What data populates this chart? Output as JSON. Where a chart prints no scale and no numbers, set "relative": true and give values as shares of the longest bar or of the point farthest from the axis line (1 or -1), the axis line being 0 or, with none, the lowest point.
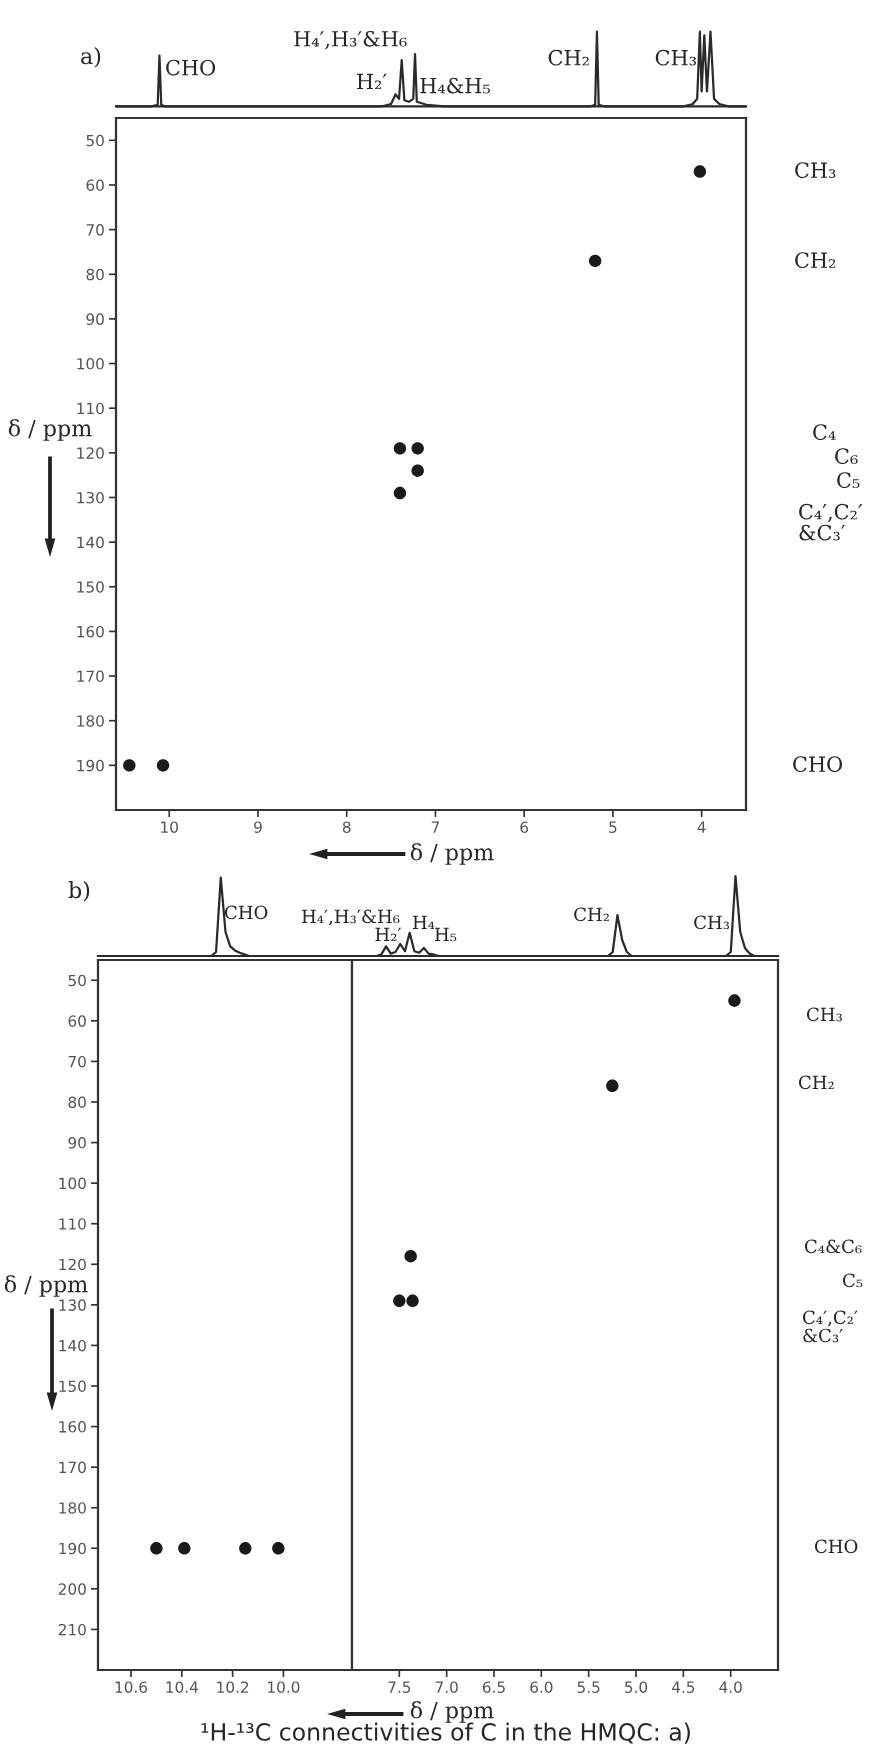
{
  "chart_data": [
    {
      "type": "line",
      "title": "a)",
      "relative": true,
      "xlim": [
        10.6,
        3.5
      ],
      "tick_labels": false,
      "x": [
        10.6,
        10.2,
        10.13,
        10.11,
        10.09,
        10.05,
        7.6,
        7.5,
        7.45,
        7.41,
        7.38,
        7.35,
        7.3,
        7.25,
        7.23,
        7.21,
        7.1,
        6.9,
        5.25,
        5.2,
        5.18,
        5.16,
        5.1,
        4.2,
        4.1,
        4.05,
        4.02,
        4.0,
        3.97,
        3.94,
        3.9,
        3.86,
        3.8,
        3.7,
        3.5
      ],
      "series": [
        {
          "color": "#2a2a2a",
          "values": [
            0,
            0,
            0.02,
            0.68,
            0.02,
            0,
            0,
            0.03,
            0.16,
            0.1,
            0.62,
            0.08,
            0.06,
            0.1,
            0.7,
            0.06,
            0.02,
            0,
            0,
            0.02,
            1.0,
            0.02,
            0,
            0,
            0.03,
            0.1,
            1.0,
            0.2,
            0.95,
            0.2,
            1.0,
            0.1,
            0.03,
            0,
            0
          ]
        }
      ],
      "annotations": [
        {
          "text": "CHO",
          "x": 10.11,
          "y": 0.68
        },
        {
          "text": "H₄′,H₃′&H₆",
          "x": 7.38,
          "y": 0.62
        },
        {
          "text": "H₂′",
          "x": 7.45,
          "y": 0.16
        },
        {
          "text": "H₄&H₅",
          "x": 7.23,
          "y": 0.7
        },
        {
          "text": "CH₂",
          "x": 5.18,
          "y": 1.0
        },
        {
          "text": "CH₃",
          "x": 4.02,
          "y": 1.0
        }
      ]
    },
    {
      "type": "scatter",
      "xlabel": "δ / ppm",
      "ylabel": "δ / ppm",
      "marker": "circle",
      "xlim": [
        10.6,
        3.5
      ],
      "ylim": [
        200,
        45
      ],
      "xticks": [
        10,
        9,
        8,
        7,
        6,
        5,
        4
      ],
      "yticks": [
        50,
        60,
        70,
        80,
        90,
        100,
        110,
        120,
        130,
        140,
        150,
        160,
        170,
        180,
        190
      ],
      "x": [
        4.02,
        5.2,
        7.4,
        7.2,
        7.2,
        7.4,
        10.45,
        10.07
      ],
      "series": [
        {
          "color": "#1a1a1a",
          "values": [
            57,
            77,
            119,
            119,
            124,
            129,
            190,
            190
          ]
        }
      ],
      "annotations": [
        "CH₃",
        "CH₂",
        "C₄",
        "C₆",
        "C₅",
        "C₄′,C₂′\n&C₃′",
        "CHO"
      ]
    },
    {
      "type": "line",
      "title": "b)",
      "relative": true,
      "tick_labels": false,
      "categories": [
        null,
        null,
        null,
        null,
        null,
        null,
        null,
        null,
        null,
        null,
        null,
        null,
        null,
        null,
        null,
        null,
        null,
        null,
        null,
        null,
        null,
        null,
        null,
        null,
        null,
        null,
        null,
        null,
        null,
        null,
        null,
        null,
        null,
        null,
        null,
        null,
        null,
        null,
        null,
        null,
        null,
        null,
        null,
        null,
        null,
        null,
        null,
        null,
        null,
        null,
        null,
        null,
        null,
        null,
        null,
        null,
        null,
        null,
        null,
        null,
        null,
        null,
        null,
        null,
        null,
        null,
        null,
        null,
        null,
        null,
        null,
        null,
        null,
        null,
        null,
        null,
        null,
        null,
        null,
        null,
        null,
        null,
        null,
        null,
        null,
        null,
        null,
        null,
        null,
        null,
        null,
        null,
        null,
        null,
        null,
        null,
        null,
        null,
        null,
        null,
        null,
        null,
        null,
        null,
        null,
        null,
        null,
        null,
        null,
        null,
        null,
        null,
        null,
        null,
        null,
        null,
        null,
        null,
        null,
        null,
        null,
        null,
        null,
        null,
        null,
        null,
        null,
        null,
        null,
        null,
        null,
        null,
        null,
        null,
        null,
        null,
        null,
        null,
        null,
        null,
        null,
        null,
        null,
        null,
        null
      ],
      "series": [
        {
          "color": "#2a2a2a",
          "values": [
            0,
            0,
            0,
            0,
            0,
            0,
            0,
            0,
            0,
            0,
            0,
            0,
            0,
            0,
            0,
            0,
            0,
            0,
            0,
            0,
            0,
            0,
            0,
            0,
            0,
            0.05,
            0.98,
            0.3,
            0.12,
            0.07,
            0.04,
            0.02,
            0,
            0,
            0,
            0,
            0,
            0,
            0,
            0,
            0,
            0,
            0,
            0,
            0,
            0,
            0,
            0,
            0,
            0,
            0,
            0,
            0,
            0,
            0,
            0,
            0,
            0,
            0,
            0,
            0.02,
            0.12,
            0.03,
            0.05,
            0.15,
            0.06,
            0.29,
            0.06,
            0.04,
            0.1,
            0.03,
            0.02,
            0,
            0,
            0,
            0,
            0,
            0,
            0,
            0,
            0,
            0,
            0,
            0,
            0,
            0,
            0,
            0,
            0,
            0,
            0,
            0,
            0,
            0,
            0,
            0,
            0,
            0,
            0,
            0,
            0,
            0,
            0,
            0,
            0,
            0,
            0,
            0,
            0,
            0.05,
            0.51,
            0.2,
            0.05,
            0,
            0,
            0,
            0,
            0,
            0,
            0,
            0,
            0,
            0,
            0,
            0,
            0,
            0,
            0,
            0,
            0,
            0,
            0,
            0,
            0,
            0.05,
            1.0,
            0.3,
            0.1,
            0.03,
            0,
            0,
            0,
            0,
            0,
            0
          ]
        }
      ],
      "annotations": [
        "CHO",
        "H₄′,H₃′&H₆",
        "H₄",
        "H₂′",
        "H₅",
        "CH₂",
        "CH₃"
      ]
    },
    {
      "type": "scatter",
      "ylabel": "δ / ppm",
      "marker": "circle",
      "xlim": [
        10.73,
        9.73
      ],
      "ylim": [
        220,
        45
      ],
      "xticks": [
        10.6,
        10.4,
        10.2,
        {
          "value": 10,
          "label": "10.0"
        }
      ],
      "yticks": [
        50,
        60,
        70,
        80,
        90,
        100,
        110,
        120,
        130,
        140,
        150,
        160,
        170,
        180,
        190,
        200,
        210
      ],
      "x": [
        10.5,
        10.39,
        10.15,
        10.02
      ],
      "series": [
        {
          "color": "#1a1a1a",
          "values": [
            190,
            190,
            190,
            190
          ]
        }
      ]
    },
    {
      "type": "scatter",
      "xlabel": "δ / ppm",
      "marker": "circle",
      "xlim": [
        8.0,
        3.5
      ],
      "ylim": [
        220,
        45
      ],
      "tick_labels": "x",
      "xticks": [
        7.5,
        {
          "value": 7,
          "label": "7.0"
        },
        6.5,
        {
          "value": 6,
          "label": "6.0"
        },
        5.5,
        {
          "value": 5,
          "label": "5.0"
        },
        4.5,
        {
          "value": 4,
          "label": "4.0"
        }
      ],
      "x": [
        3.96,
        5.25,
        7.38,
        7.5,
        7.36
      ],
      "series": [
        {
          "color": "#1a1a1a",
          "values": [
            55,
            76,
            118,
            129,
            129
          ]
        }
      ],
      "annotations": [
        "CH₃",
        "CH₂",
        "C₄&C₆",
        "C₅",
        "C₄′,C₂′\n&C₃′",
        "CHO",
        "¹H-¹³C connectivities of C in the HMQC: a)"
      ]
    }
  ]
}
